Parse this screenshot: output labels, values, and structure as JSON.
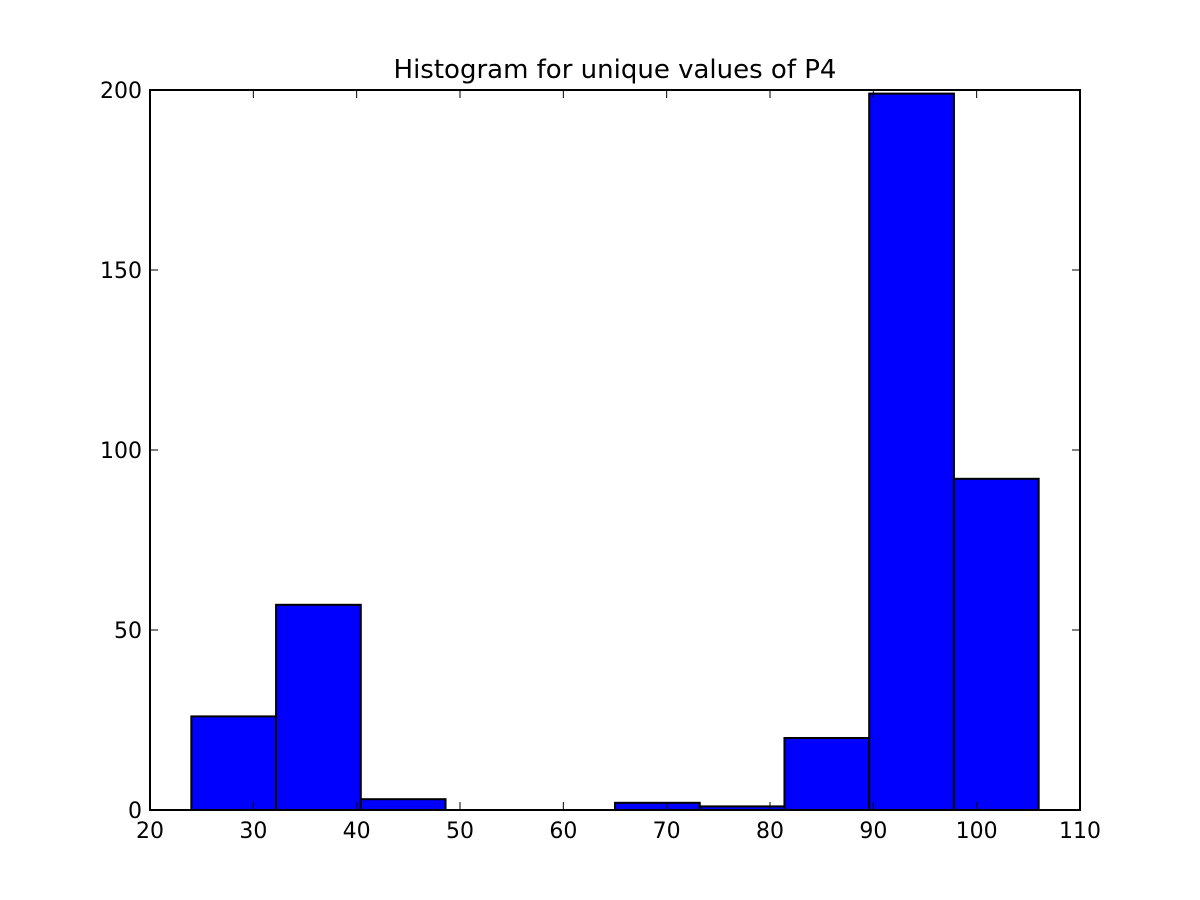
{
  "chart_data": {
    "type": "bar",
    "title": "Histogram for unique values of P4",
    "xlabel": "",
    "ylabel": "",
    "xlim": [
      20,
      110
    ],
    "ylim": [
      0,
      200
    ],
    "x_ticks": [
      20,
      30,
      40,
      50,
      60,
      70,
      80,
      90,
      100,
      110
    ],
    "y_ticks": [
      0,
      50,
      100,
      150,
      200
    ],
    "bins": [
      {
        "start": 24.0,
        "end": 32.2,
        "count": 26
      },
      {
        "start": 32.2,
        "end": 40.4,
        "count": 57
      },
      {
        "start": 40.4,
        "end": 48.6,
        "count": 3
      },
      {
        "start": 48.6,
        "end": 56.8,
        "count": 0
      },
      {
        "start": 56.8,
        "end": 65.0,
        "count": 0
      },
      {
        "start": 65.0,
        "end": 73.2,
        "count": 2
      },
      {
        "start": 73.2,
        "end": 81.4,
        "count": 1
      },
      {
        "start": 81.4,
        "end": 89.6,
        "count": 20
      },
      {
        "start": 89.6,
        "end": 97.8,
        "count": 199
      },
      {
        "start": 97.8,
        "end": 106.0,
        "count": 92
      }
    ],
    "bar_color": "#0000ff",
    "edge_color": "#000000",
    "grid": false,
    "legend": "none"
  }
}
